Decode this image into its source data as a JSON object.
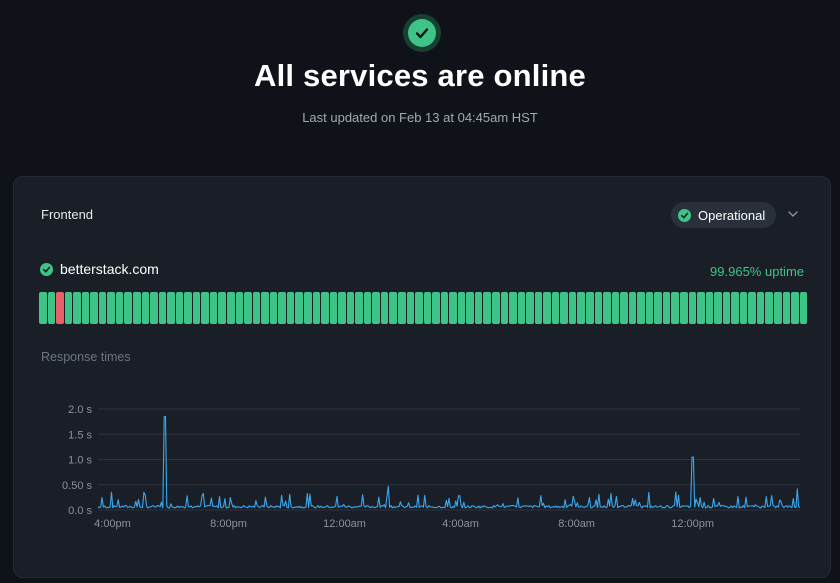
{
  "hero": {
    "icon": "check-icon",
    "title": "All services are online",
    "subtitle": "Last updated on Feb 13 at 04:45am HST"
  },
  "section": {
    "title": "Frontend",
    "status_label": "Operational",
    "status_icon": "check-icon",
    "expand_icon": "chevron-down-icon"
  },
  "monitor": {
    "name": "betterstack.com",
    "uptime": "99.965% uptime",
    "bar_count": 90,
    "down_bars": [
      2
    ],
    "colors": {
      "operational": "#3ec486",
      "down": "#e8606a"
    }
  },
  "response_times": {
    "title": "Response times",
    "chart_data": {
      "type": "line",
      "ylabel": "",
      "xlabel": "",
      "y_ticks": [
        "0.0 s",
        "0.50 s",
        "1.0 s",
        "1.5 s",
        "2.0 s"
      ],
      "ylim": [
        0,
        2.0
      ],
      "x_ticks": [
        "4:00pm",
        "8:00pm",
        "12:00am",
        "4:00am",
        "8:00am",
        "12:00pm"
      ],
      "x_range_hours": [
        15.5,
        39.7
      ],
      "x_tick_hours": [
        16,
        20,
        24,
        28,
        32,
        36
      ],
      "grid": true,
      "series": [
        {
          "color": "#3aa7f0",
          "baseline_s": 0.04,
          "spikes": [
            {
              "hour": 17.8,
              "value": 1.85
            },
            {
              "hour": 36.0,
              "value": 1.05
            },
            {
              "hour": 25.5,
              "value": 0.47
            },
            {
              "hour": 39.6,
              "value": 0.42
            }
          ]
        }
      ]
    }
  }
}
